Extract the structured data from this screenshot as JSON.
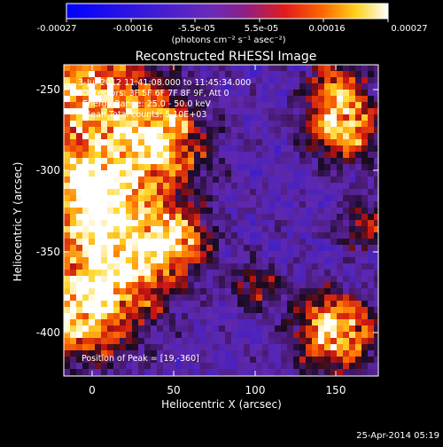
{
  "colorbar": {
    "ticks": [
      "-0.00027",
      "-0.00016",
      "-5.5e-05",
      "5.5e-05",
      "0.00016",
      "0.00027"
    ],
    "unit_label": "(photons cm⁻² s⁻¹ asec⁻²)"
  },
  "title": "Reconstructed RHESSI Image",
  "info_lines": [
    "3-Jul-2012 11:41:08.000 to 11:45:34.000",
    "Detectors: 3F 5F 6F 7F 8F 9F, Att 0",
    "Energy Range: 25.0 - 50.0 keV",
    "Clean     Total counts: 5.10E+03"
  ],
  "peak_label": "Position of Peak = [19,-360]",
  "axes": {
    "xlabel": "Heliocentric X (arcsec)",
    "ylabel": "Heliocentric Y (arcsec)",
    "xticks": [
      "0",
      "50",
      "100",
      "150"
    ],
    "yticks": [
      "-250",
      "-300",
      "-350",
      "-400"
    ]
  },
  "footer_date": "25-Apr-2014 05:19",
  "colors": {
    "background": "#000000",
    "cmap_low": "#0000ff",
    "cmap_mid": "#6a2ab8",
    "cmap_high": "#ffffff"
  }
}
